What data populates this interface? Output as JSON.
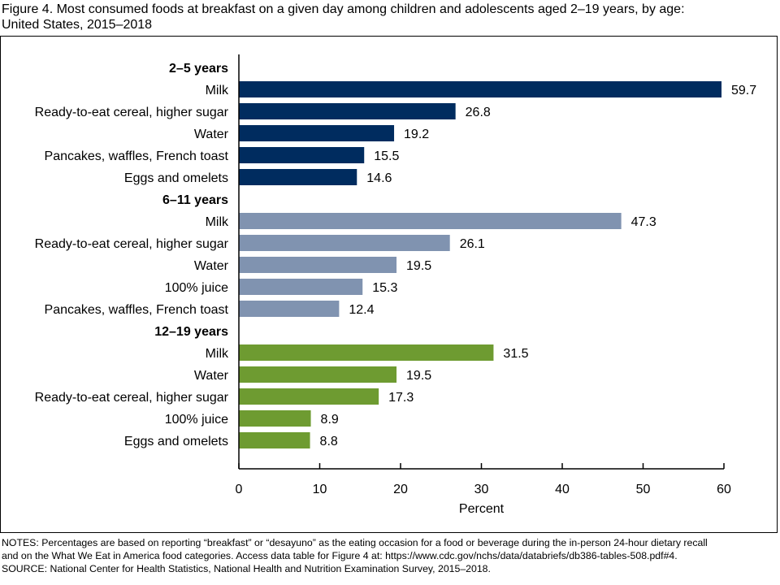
{
  "figure": {
    "title_line1": "Figure 4. Most consumed foods at breakfast on a given day among children and adolescents aged 2–19 years, by age:",
    "title_line2": "United States, 2015–2018"
  },
  "notes": {
    "line1": "NOTES: Percentages are based on reporting “breakfast” or “desayuno” as the eating occasion for a food or beverage during the in-person 24-hour dietary recall",
    "line2": "and on the What We Eat in America food categories. Access data table for Figure 4 at: https://www.cdc.gov/nchs/data/databriefs/db386-tables-508.pdf#4.",
    "line3": "SOURCE: National Center for Health Statistics, National Health and Nutrition Examination Survey, 2015–2018."
  },
  "chart_data": {
    "type": "bar",
    "orientation": "horizontal",
    "xlabel": "Percent",
    "xlim": [
      0,
      60
    ],
    "xticks": [
      "0",
      "10",
      "20",
      "30",
      "40",
      "50",
      "60"
    ],
    "grid": false,
    "groups": [
      {
        "name": "2–5 years",
        "color": "#002c5f",
        "categories": [
          "Milk",
          "Ready-to-eat cereal, higher sugar",
          "Water",
          "Pancakes, waffles, French toast",
          "Eggs and omelets"
        ],
        "values": [
          59.7,
          26.8,
          19.2,
          15.5,
          14.6
        ],
        "labels": [
          "59.7",
          "26.8",
          "19.2",
          "15.5",
          "14.6"
        ]
      },
      {
        "name": "6–11 years",
        "color": "#8093b0",
        "categories": [
          "Milk",
          "Ready-to-eat cereal, higher sugar",
          "Water",
          "100% juice",
          "Pancakes, waffles, French toast"
        ],
        "values": [
          47.3,
          26.1,
          19.5,
          15.3,
          12.4
        ],
        "labels": [
          "47.3",
          "26.1",
          "19.5",
          "15.3",
          "12.4"
        ]
      },
      {
        "name": "12–19 years",
        "color": "#6e9b31",
        "categories": [
          "Milk",
          "Water",
          "Ready-to-eat cereal, higher sugar",
          "100% juice",
          "Eggs and omelets"
        ],
        "values": [
          31.5,
          19.5,
          17.3,
          8.9,
          8.8
        ],
        "labels": [
          "31.5",
          "19.5",
          "17.3",
          "8.9",
          "8.8"
        ]
      }
    ]
  }
}
